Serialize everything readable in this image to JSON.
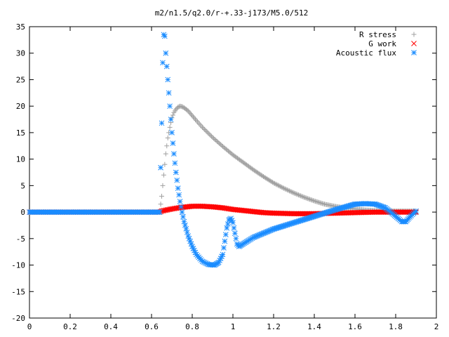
{
  "chart_data": {
    "type": "scatter",
    "title": "m2/n1.5/q2.0/r-+.33-j173/M5.0/512",
    "xlabel": "",
    "ylabel": "",
    "xlim": [
      0,
      2
    ],
    "ylim": [
      -20,
      35
    ],
    "grid": false,
    "legend_position": "top-right",
    "x_ticks": [
      0,
      0.2,
      0.4,
      0.6,
      0.8,
      1,
      1.2,
      1.4,
      1.6,
      1.8,
      2
    ],
    "x_tick_labels": [
      "0",
      "0.2",
      "0.4",
      "0.6",
      "0.8",
      "1",
      "1.2",
      "1.4",
      "1.6",
      "1.8",
      "2"
    ],
    "y_ticks": [
      -20,
      -15,
      -10,
      -5,
      0,
      5,
      10,
      15,
      20,
      25,
      30,
      35
    ],
    "y_tick_labels": [
      "-20",
      "-15",
      "-10",
      "-5",
      "0",
      "5",
      "10",
      "15",
      "20",
      "25",
      "30",
      "35"
    ],
    "series": [
      {
        "name": "R stress",
        "marker": "plus",
        "color": "#a0a0a0",
        "points": [
          [
            0.0,
            0.0
          ],
          [
            0.6,
            0.0
          ],
          [
            0.64,
            0.0
          ],
          [
            0.65,
            3.0
          ],
          [
            0.66,
            7.0
          ],
          [
            0.67,
            11.0
          ],
          [
            0.68,
            14.0
          ],
          [
            0.69,
            16.0
          ],
          [
            0.7,
            17.8
          ],
          [
            0.71,
            18.8
          ],
          [
            0.72,
            19.4
          ],
          [
            0.73,
            19.8
          ],
          [
            0.74,
            20.0
          ],
          [
            0.75,
            19.9
          ],
          [
            0.76,
            19.7
          ],
          [
            0.78,
            19.1
          ],
          [
            0.8,
            18.2
          ],
          [
            0.82,
            17.3
          ],
          [
            0.85,
            16.0
          ],
          [
            0.9,
            14.1
          ],
          [
            0.95,
            12.4
          ],
          [
            1.0,
            10.8
          ],
          [
            1.05,
            9.4
          ],
          [
            1.1,
            8.0
          ],
          [
            1.15,
            6.7
          ],
          [
            1.2,
            5.5
          ],
          [
            1.25,
            4.5
          ],
          [
            1.3,
            3.6
          ],
          [
            1.35,
            2.8
          ],
          [
            1.4,
            2.1
          ],
          [
            1.45,
            1.5
          ],
          [
            1.5,
            1.1
          ],
          [
            1.55,
            0.8
          ],
          [
            1.6,
            0.6
          ],
          [
            1.65,
            0.4
          ],
          [
            1.7,
            0.3
          ],
          [
            1.75,
            0.25
          ],
          [
            1.8,
            0.2
          ],
          [
            1.85,
            0.2
          ],
          [
            1.9,
            0.2
          ]
        ]
      },
      {
        "name": "G work",
        "marker": "cross",
        "color": "#ff0000",
        "points": [
          [
            0.0,
            0.0
          ],
          [
            0.6,
            0.0
          ],
          [
            0.64,
            0.0
          ],
          [
            0.65,
            0.2
          ],
          [
            0.7,
            0.6
          ],
          [
            0.75,
            0.9
          ],
          [
            0.8,
            1.1
          ],
          [
            0.85,
            1.1
          ],
          [
            0.9,
            1.0
          ],
          [
            0.95,
            0.8
          ],
          [
            1.0,
            0.5
          ],
          [
            1.05,
            0.3
          ],
          [
            1.1,
            0.1
          ],
          [
            1.15,
            -0.1
          ],
          [
            1.2,
            -0.2
          ],
          [
            1.3,
            -0.3
          ],
          [
            1.4,
            -0.3
          ],
          [
            1.5,
            -0.2
          ],
          [
            1.6,
            -0.1
          ],
          [
            1.7,
            0.0
          ],
          [
            1.8,
            0.0
          ],
          [
            1.9,
            0.0
          ]
        ]
      },
      {
        "name": "Acoustic flux",
        "marker": "star",
        "color": "#1a8cff",
        "points": [
          [
            0.0,
            0.0
          ],
          [
            0.6,
            0.0
          ],
          [
            0.64,
            0.0
          ],
          [
            0.65,
            16.8
          ],
          [
            0.655,
            28.2
          ],
          [
            0.66,
            33.5
          ],
          [
            0.665,
            33.2
          ],
          [
            0.67,
            30.0
          ],
          [
            0.68,
            25.0
          ],
          [
            0.69,
            20.0
          ],
          [
            0.7,
            15.0
          ],
          [
            0.71,
            11.0
          ],
          [
            0.72,
            7.5
          ],
          [
            0.73,
            4.5
          ],
          [
            0.74,
            2.0
          ],
          [
            0.75,
            0.0
          ],
          [
            0.76,
            -1.8
          ],
          [
            0.78,
            -4.5
          ],
          [
            0.8,
            -6.5
          ],
          [
            0.82,
            -8.0
          ],
          [
            0.85,
            -9.3
          ],
          [
            0.88,
            -9.9
          ],
          [
            0.91,
            -10.0
          ],
          [
            0.93,
            -9.5
          ],
          [
            0.95,
            -8.0
          ],
          [
            0.96,
            -5.5
          ],
          [
            0.97,
            -3.0
          ],
          [
            0.98,
            -1.5
          ],
          [
            0.99,
            -1.2
          ],
          [
            1.0,
            -2.0
          ],
          [
            1.01,
            -4.0
          ],
          [
            1.02,
            -6.0
          ],
          [
            1.03,
            -6.5
          ],
          [
            1.05,
            -6.0
          ],
          [
            1.1,
            -4.8
          ],
          [
            1.2,
            -3.2
          ],
          [
            1.3,
            -2.0
          ],
          [
            1.4,
            -0.8
          ],
          [
            1.5,
            0.4
          ],
          [
            1.6,
            1.5
          ],
          [
            1.65,
            1.6
          ],
          [
            1.7,
            1.5
          ],
          [
            1.75,
            0.8
          ],
          [
            1.8,
            -0.8
          ],
          [
            1.83,
            -1.8
          ],
          [
            1.85,
            -1.8
          ],
          [
            1.87,
            -0.9
          ],
          [
            1.9,
            0.2
          ]
        ]
      }
    ]
  }
}
